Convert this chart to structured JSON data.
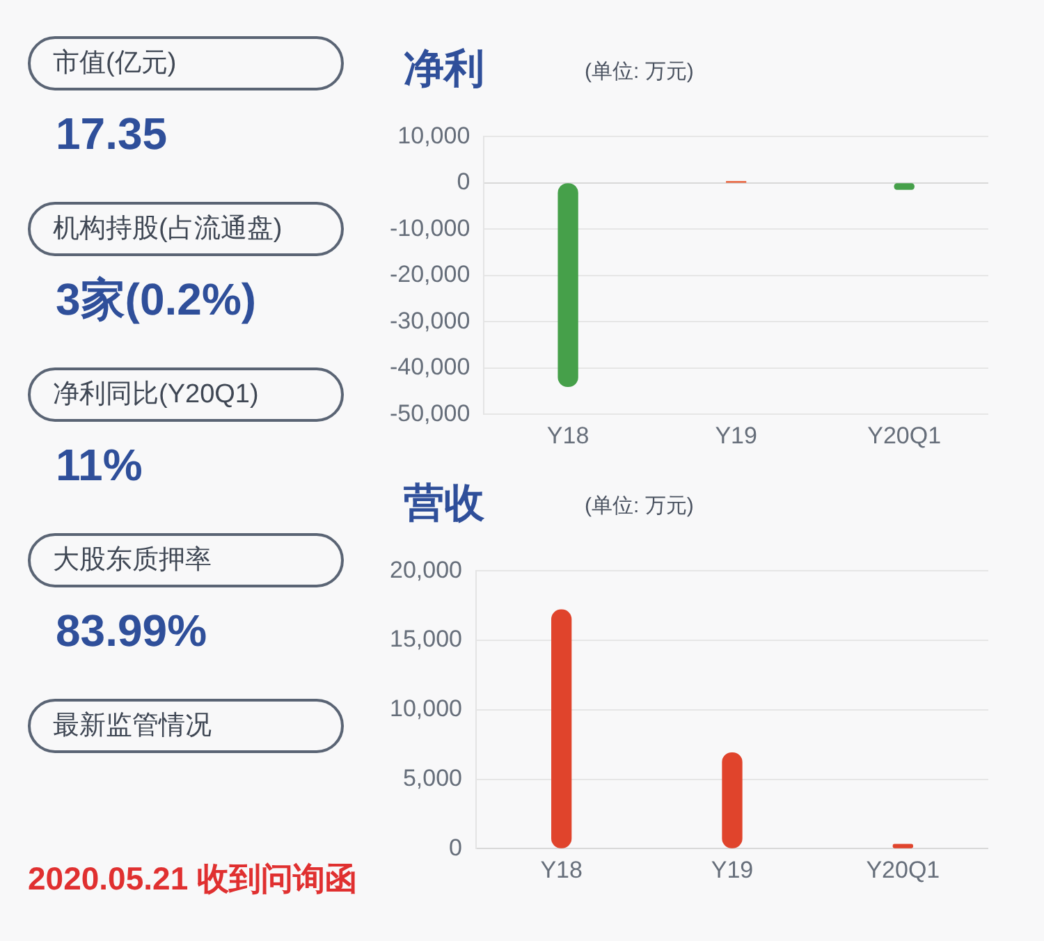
{
  "chart_data": [
    {
      "type": "other",
      "annotations": [
        "市值(亿元)",
        "17.35",
        "机构持股(占流通盘)",
        "3家(0.2%)",
        "净利同比(Y20Q1)",
        "11%",
        "大股东质押率",
        "83.99%",
        "最新监管情况",
        "2020.05.21 收到问询函"
      ]
    },
    {
      "type": "bar",
      "title": "净利",
      "subtitle": "(单位: 万元)",
      "categories": [
        "Y18",
        "Y19",
        "Y20Q1"
      ],
      "values": [
        -44000,
        300,
        -1400
      ],
      "colors": [
        "#46a04a",
        "#e8542a",
        "#46a04a"
      ],
      "ylim": [
        -50000,
        10000
      ],
      "yticks": [
        {
          "value": -50000,
          "label": "-50,000"
        },
        {
          "value": -40000,
          "label": "-40,000"
        },
        {
          "value": -30000,
          "label": "-30,000"
        },
        {
          "value": -20000,
          "label": "-20,000"
        },
        {
          "value": -10000,
          "label": "-10,000"
        },
        0,
        {
          "value": 10000,
          "label": "10,000"
        }
      ],
      "grid": "y",
      "legend": false
    },
    {
      "type": "bar",
      "title": "营收",
      "subtitle": "(单位: 万元)",
      "categories": [
        "Y18",
        "Y19",
        "Y20Q1"
      ],
      "values": [
        17200,
        6900,
        300
      ],
      "colors": [
        "#e0442c",
        "#e0442c",
        "#e0442c"
      ],
      "ylim": [
        0,
        20000
      ],
      "yticks": [
        0,
        {
          "value": 5000,
          "label": "5,000"
        },
        {
          "value": 10000,
          "label": "10,000"
        },
        {
          "value": 15000,
          "label": "15,000"
        },
        {
          "value": 20000,
          "label": "20,000"
        }
      ],
      "grid": "y",
      "legend": false
    }
  ]
}
